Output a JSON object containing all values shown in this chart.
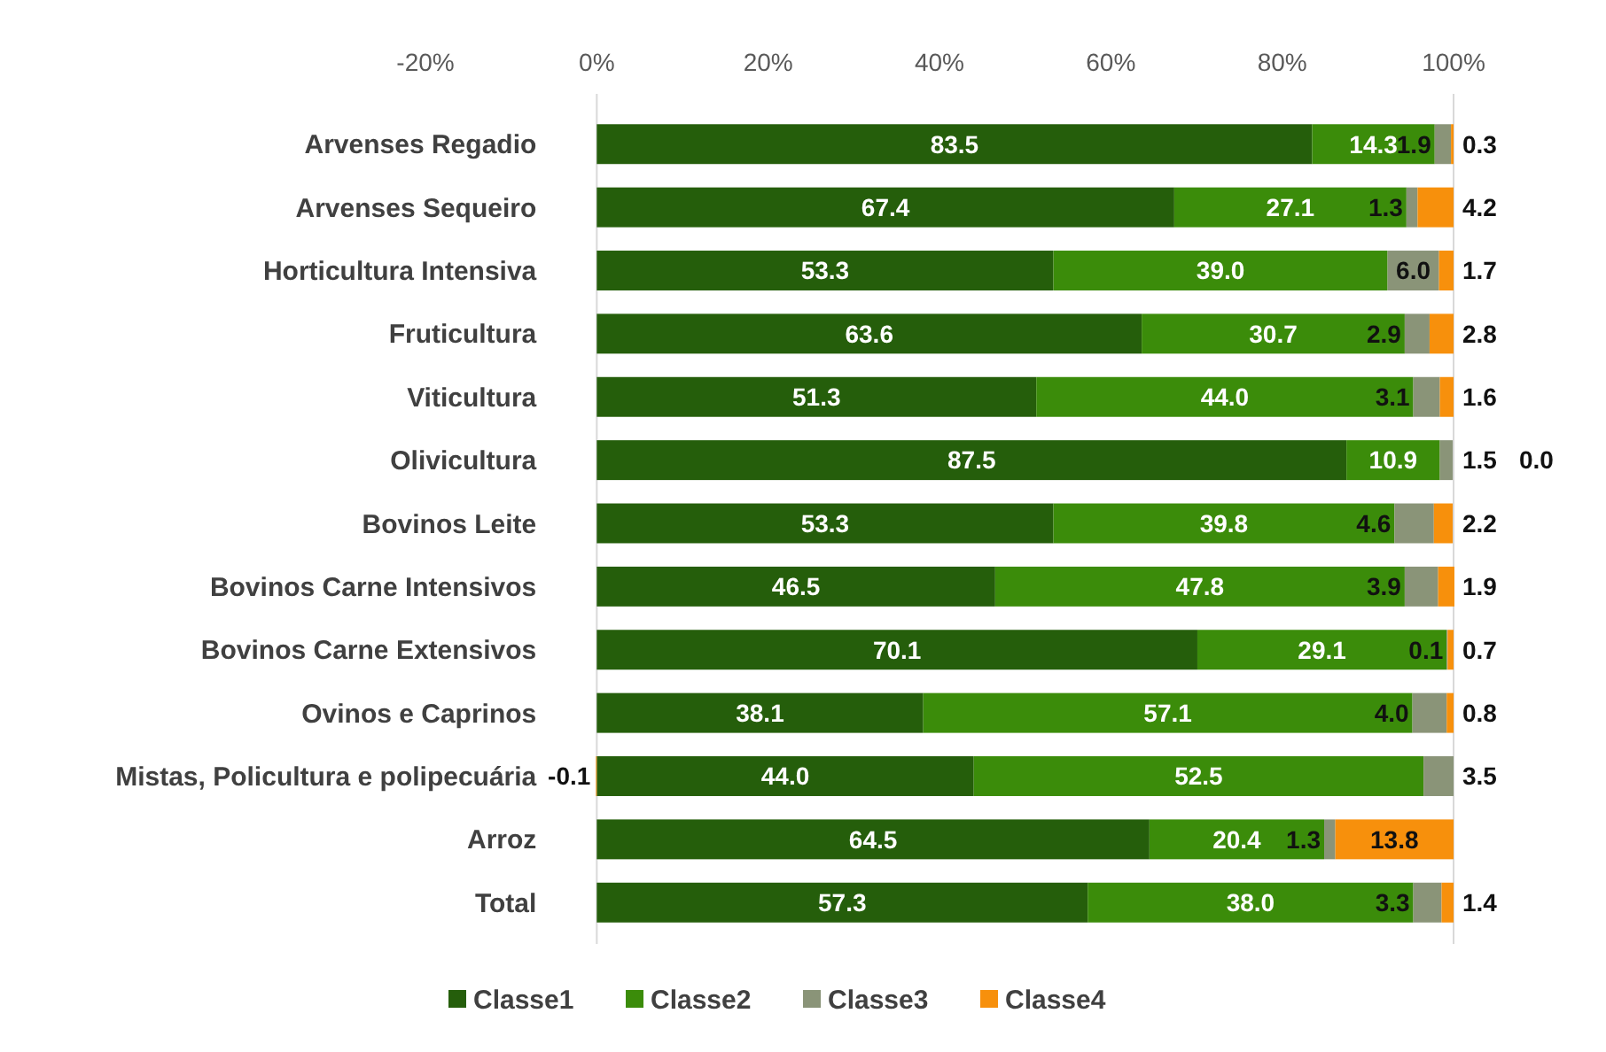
{
  "chart_data": {
    "type": "bar",
    "orientation": "horizontal",
    "stacked": true,
    "categories": [
      "Arvenses Regadio",
      "Arvenses Sequeiro",
      "Horticultura Intensiva",
      "Fruticultura",
      "Viticultura",
      "Olivicultura",
      "Bovinos Leite",
      "Bovinos Carne Intensivos",
      "Bovinos Carne Extensivos",
      "Ovinos e Caprinos",
      "Mistas, Policultura e polipecuária",
      "Arroz",
      "Total"
    ],
    "series": [
      {
        "name": "Classe1",
        "color": "#255e0b",
        "values": [
          83.5,
          67.4,
          53.3,
          63.6,
          51.3,
          87.5,
          53.3,
          46.5,
          70.1,
          38.1,
          44.0,
          64.5,
          57.3
        ],
        "value_labels": [
          "83.5",
          "67.4",
          "53.3",
          "63.6",
          "51.3",
          "87.5",
          "53.3",
          "46.5",
          "70.1",
          "38.1",
          "44.0",
          "64.5",
          "57.3"
        ]
      },
      {
        "name": "Classe2",
        "color": "#3b8c0a",
        "values": [
          14.3,
          27.1,
          39.0,
          30.7,
          44.0,
          10.9,
          39.8,
          47.8,
          29.1,
          57.1,
          52.5,
          20.4,
          38.0
        ],
        "value_labels": [
          "14.3",
          "27.1",
          "39.0",
          "30.7",
          "44.0",
          "10.9",
          "39.8",
          "47.8",
          "29.1",
          "57.1",
          "52.5",
          "20.4",
          "38.0"
        ]
      },
      {
        "name": "Classe3",
        "color": "#8a9478",
        "values": [
          1.9,
          1.3,
          6.0,
          2.9,
          3.1,
          1.5,
          4.6,
          3.9,
          0.1,
          4.0,
          3.5,
          1.3,
          3.3
        ],
        "value_labels": [
          "1.9",
          "1.3",
          "6.0",
          "2.9",
          "3.1",
          "1.5",
          "4.6",
          "3.9",
          "0.1",
          "4.0",
          "3.5",
          "1.3",
          "3.3"
        ]
      },
      {
        "name": "Classe4",
        "color": "#f7900c",
        "values": [
          0.3,
          4.2,
          1.7,
          2.8,
          1.6,
          0.0,
          2.2,
          1.9,
          0.7,
          0.8,
          -0.1,
          13.8,
          1.4
        ],
        "value_labels": [
          "0.3",
          "4.2",
          "1.7",
          "2.8",
          "1.6",
          "0.0",
          "2.2",
          "1.9",
          "0.7",
          "0.8",
          "-0.1",
          "13.8",
          "1.4"
        ]
      }
    ],
    "xlim": [
      -20,
      100
    ],
    "xticks": [
      {
        "value": -20,
        "label": "-20%"
      },
      {
        "value": 0,
        "label": "0%"
      },
      {
        "value": 20,
        "label": "20%"
      },
      {
        "value": 40,
        "label": "40%"
      },
      {
        "value": 60,
        "label": "60%"
      },
      {
        "value": 80,
        "label": "80%"
      },
      {
        "value": 100,
        "label": "100%"
      }
    ],
    "legend": "bottom",
    "grid": false
  }
}
